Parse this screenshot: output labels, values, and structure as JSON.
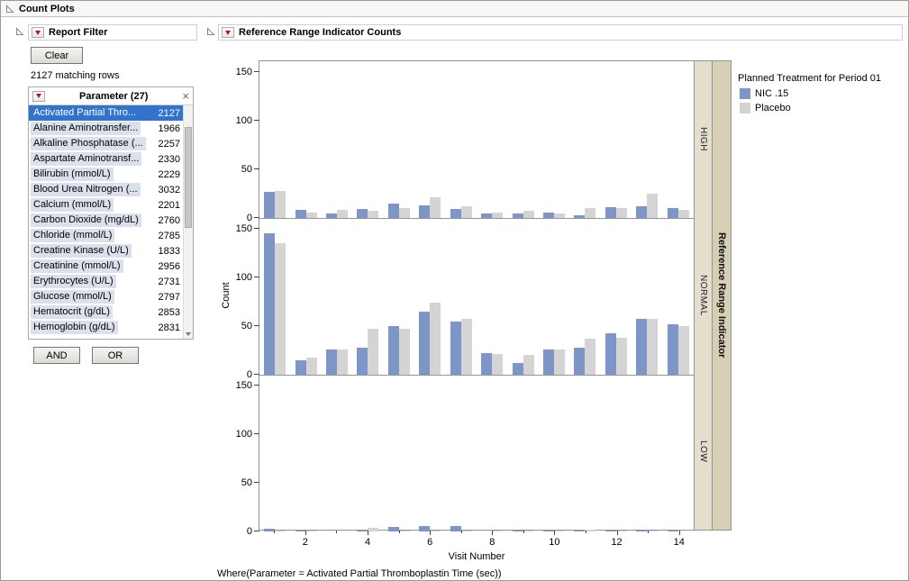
{
  "window": {
    "title": "Count Plots"
  },
  "report_filter": {
    "title": "Report Filter",
    "clear_button": "Clear",
    "matching_rows": "2127 matching rows",
    "list_title": "Parameter (27)",
    "close_icon": "×",
    "and_button": "AND",
    "or_button": "OR",
    "parameters": [
      {
        "label": "Activated Partial Thro...",
        "count": 2127,
        "selected": true
      },
      {
        "label": "Alanine Aminotransfer...",
        "count": 1966,
        "selected": false
      },
      {
        "label": "Alkaline Phosphatase (...",
        "count": 2257,
        "selected": false
      },
      {
        "label": "Aspartate Aminotransf...",
        "count": 2330,
        "selected": false
      },
      {
        "label": "Bilirubin (mmol/L)",
        "count": 2229,
        "selected": false
      },
      {
        "label": "Blood Urea Nitrogen (...",
        "count": 3032,
        "selected": false
      },
      {
        "label": "Calcium (mmol/L)",
        "count": 2201,
        "selected": false
      },
      {
        "label": "Carbon Dioxide (mg/dL)",
        "count": 2760,
        "selected": false
      },
      {
        "label": "Chloride (mmol/L)",
        "count": 2785,
        "selected": false
      },
      {
        "label": "Creatine Kinase (U/L)",
        "count": 1833,
        "selected": false
      },
      {
        "label": "Creatinine (mmol/L)",
        "count": 2956,
        "selected": false
      },
      {
        "label": "Erythrocytes (U/L)",
        "count": 2731,
        "selected": false
      },
      {
        "label": "Glucose (mmol/L)",
        "count": 2797,
        "selected": false
      },
      {
        "label": "Hematocrit (g/dL)",
        "count": 2853,
        "selected": false
      },
      {
        "label": "Hemoglobin (g/dL)",
        "count": 2831,
        "selected": false
      }
    ]
  },
  "chart_section": {
    "title": "Reference Range Indicator Counts"
  },
  "chart_data": {
    "type": "bar",
    "title": "Reference Range Indicator Counts",
    "xlabel": "Visit Number",
    "ylabel": "Count",
    "ylim": [
      0,
      155
    ],
    "yticks": [
      0,
      50,
      100,
      150
    ],
    "x": [
      1,
      2,
      3,
      4,
      5,
      6,
      7,
      8,
      9,
      10,
      11,
      12,
      13,
      14
    ],
    "x_major_ticks": [
      2,
      4,
      6,
      8,
      10,
      12,
      14
    ],
    "panel_axis_title": "Reference Range Indicator",
    "legend": {
      "title": "Planned Treatment for Period 01",
      "entries": [
        {
          "label": "NIC .15",
          "color": "#7E95C7"
        },
        {
          "label": "Placebo",
          "color": "#D3D3D3"
        }
      ]
    },
    "panels": [
      {
        "name": "HIGH",
        "series": [
          {
            "name": "NIC .15",
            "values": [
              27,
              8,
              5,
              9,
              15,
              13,
              9,
              5,
              5,
              6,
              3,
              11,
              12,
              10
            ]
          },
          {
            "name": "Placebo",
            "values": [
              28,
              6,
              8,
              7,
              10,
              21,
              12,
              6,
              7,
              5,
              10,
              10,
              25,
              8
            ]
          }
        ]
      },
      {
        "name": "NORMAL",
        "series": [
          {
            "name": "NIC .15",
            "values": [
              145,
              15,
              26,
              28,
              50,
              65,
              55,
              22,
              12,
              26,
              28,
              43,
              57,
              52
            ]
          },
          {
            "name": "Placebo",
            "values": [
              135,
              18,
              26,
              47,
              47,
              74,
              57,
              21,
              20,
              26,
              37,
              38,
              57,
              50
            ]
          }
        ]
      },
      {
        "name": "LOW",
        "series": [
          {
            "name": "NIC .15",
            "values": [
              3,
              1,
              0,
              1,
              5,
              6,
              6,
              0,
              1,
              1,
              1,
              1,
              2,
              2
            ]
          },
          {
            "name": "Placebo",
            "values": [
              1,
              1,
              0,
              4,
              1,
              1,
              1,
              1,
              1,
              1,
              2,
              1,
              1,
              0
            ]
          }
        ]
      }
    ]
  },
  "footer": {
    "where_clause": "Where(Parameter = Activated Partial Thromboplastin Time (sec))"
  }
}
